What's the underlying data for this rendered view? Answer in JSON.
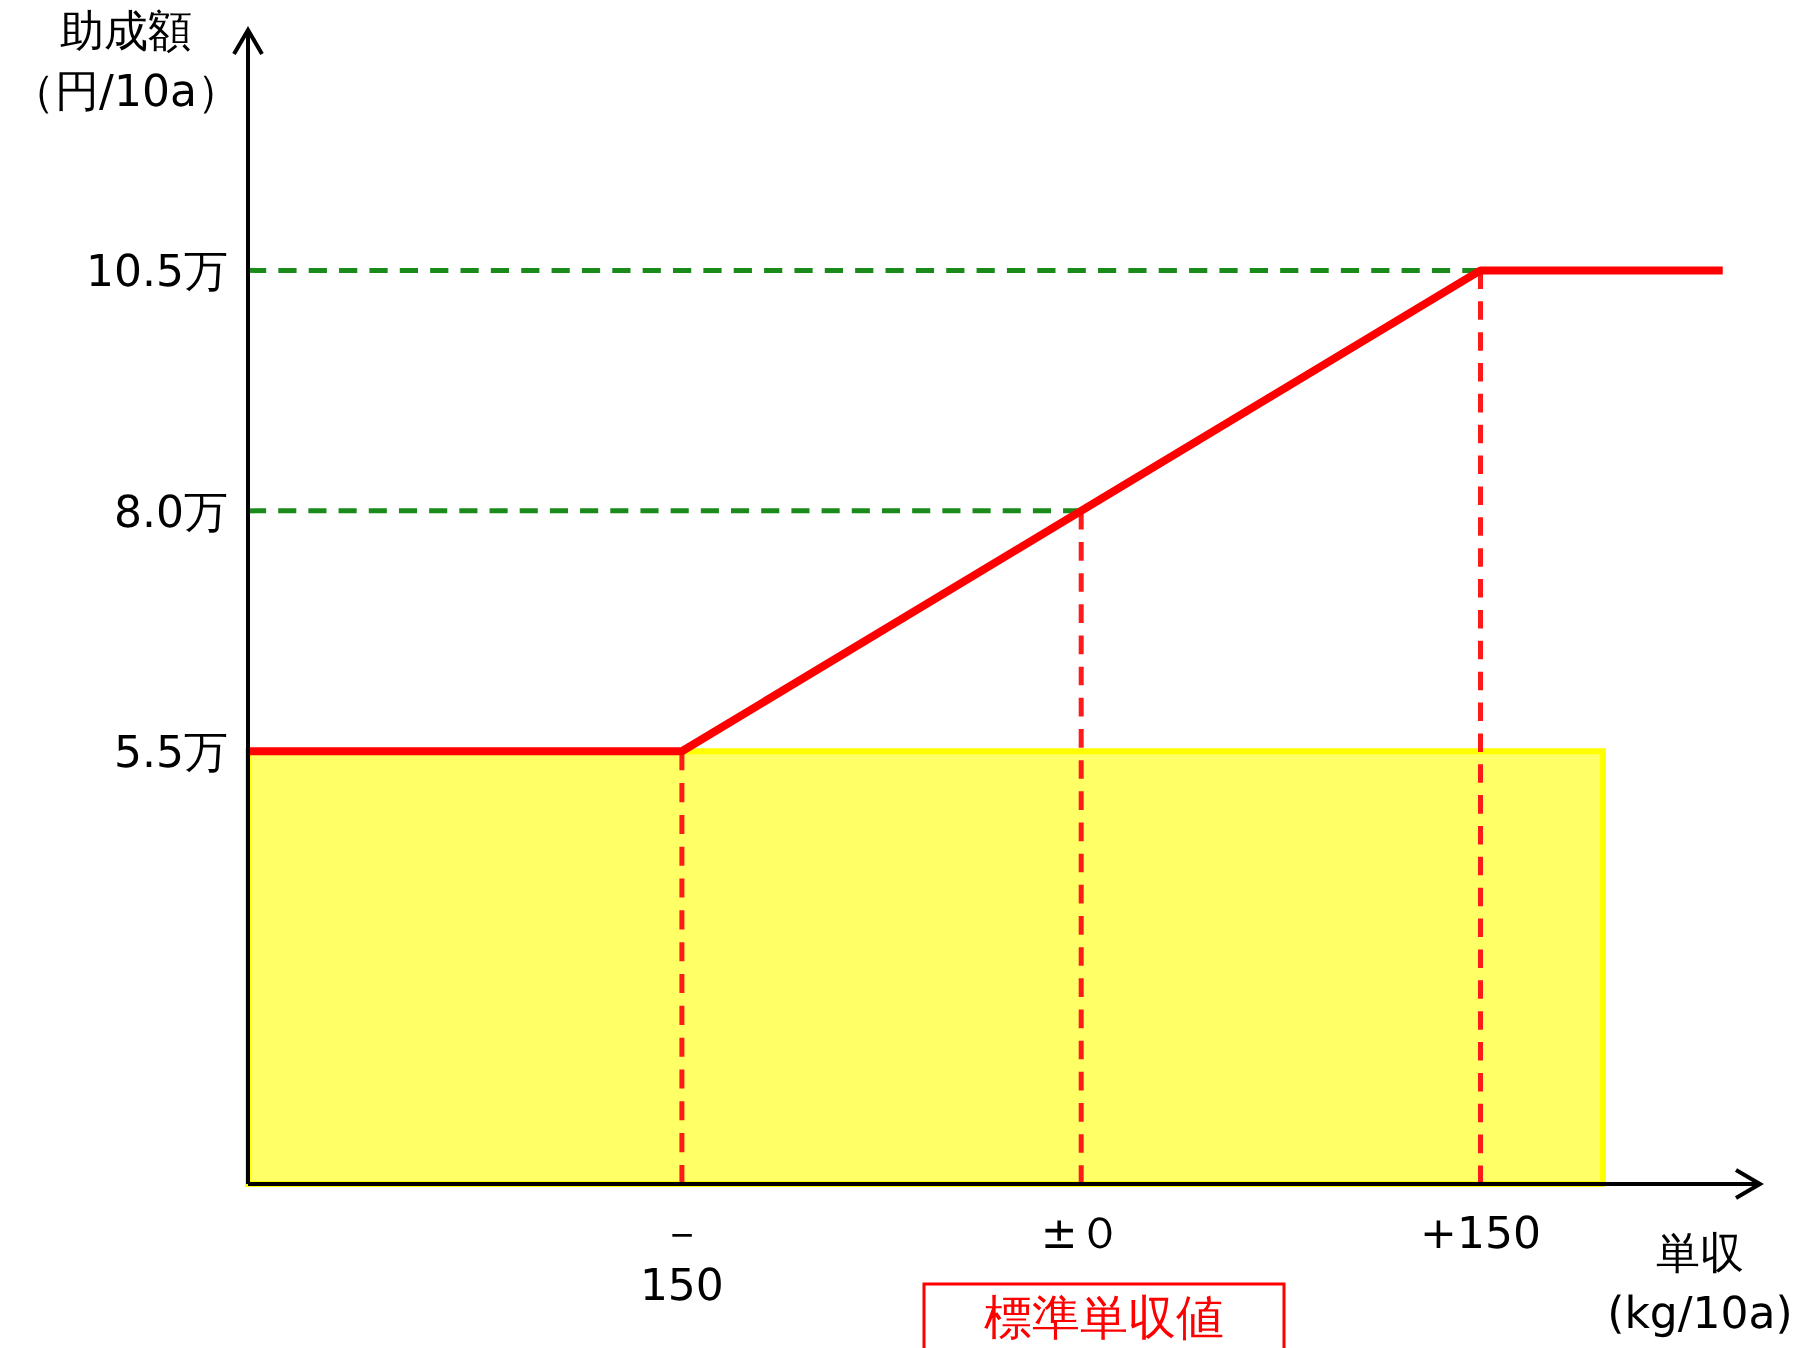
{
  "chart_data": {
    "type": "line",
    "xlabel": "単収\n(kg/10a)",
    "ylabel": "助成額（円/10a）",
    "xlim": [
      -313,
      255
    ],
    "ylim": [
      1,
      13
    ],
    "xticks": [
      {
        "value": -150,
        "label": "－\n150"
      },
      {
        "value": 0,
        "label": "±０"
      },
      {
        "value": 150,
        "label": "+150"
      }
    ],
    "yticks": [
      {
        "value": 5.5,
        "label": "5.5万"
      },
      {
        "value": 8.0,
        "label": "8.0万"
      },
      {
        "value": 10.5,
        "label": "10.5万"
      }
    ],
    "series": [
      {
        "type": "area",
        "color": "#ffff66",
        "x": [
          -313,
          196
        ],
        "values": [
          5.5,
          5.5
        ]
      },
      {
        "color": "#1a8a1a",
        "line_style": "dashed",
        "x": [
          -313,
          150
        ],
        "values": [
          10.5,
          10.5
        ]
      },
      {
        "color": "#1a8a1a",
        "line_style": "dashed",
        "x": [
          -313,
          0
        ],
        "values": [
          8.0,
          8.0
        ]
      },
      {
        "color": "#ff1a1a",
        "line_style": "dashed",
        "x": [
          -150,
          -150
        ],
        "values": [
          1,
          5.5
        ]
      },
      {
        "color": "#ff1a1a",
        "line_style": "dashed",
        "x": [
          0,
          0
        ],
        "values": [
          1,
          8.0
        ]
      },
      {
        "color": "#ff1a1a",
        "line_style": "dashed",
        "x": [
          150,
          150
        ],
        "values": [
          1,
          10.5
        ]
      },
      {
        "color": "#ff0000",
        "line_style": "solid",
        "x": [
          -313,
          -150,
          150,
          241
        ],
        "values": [
          5.5,
          5.5,
          10.5,
          10.5
        ]
      }
    ],
    "annotations": [
      "標準単収値"
    ]
  }
}
